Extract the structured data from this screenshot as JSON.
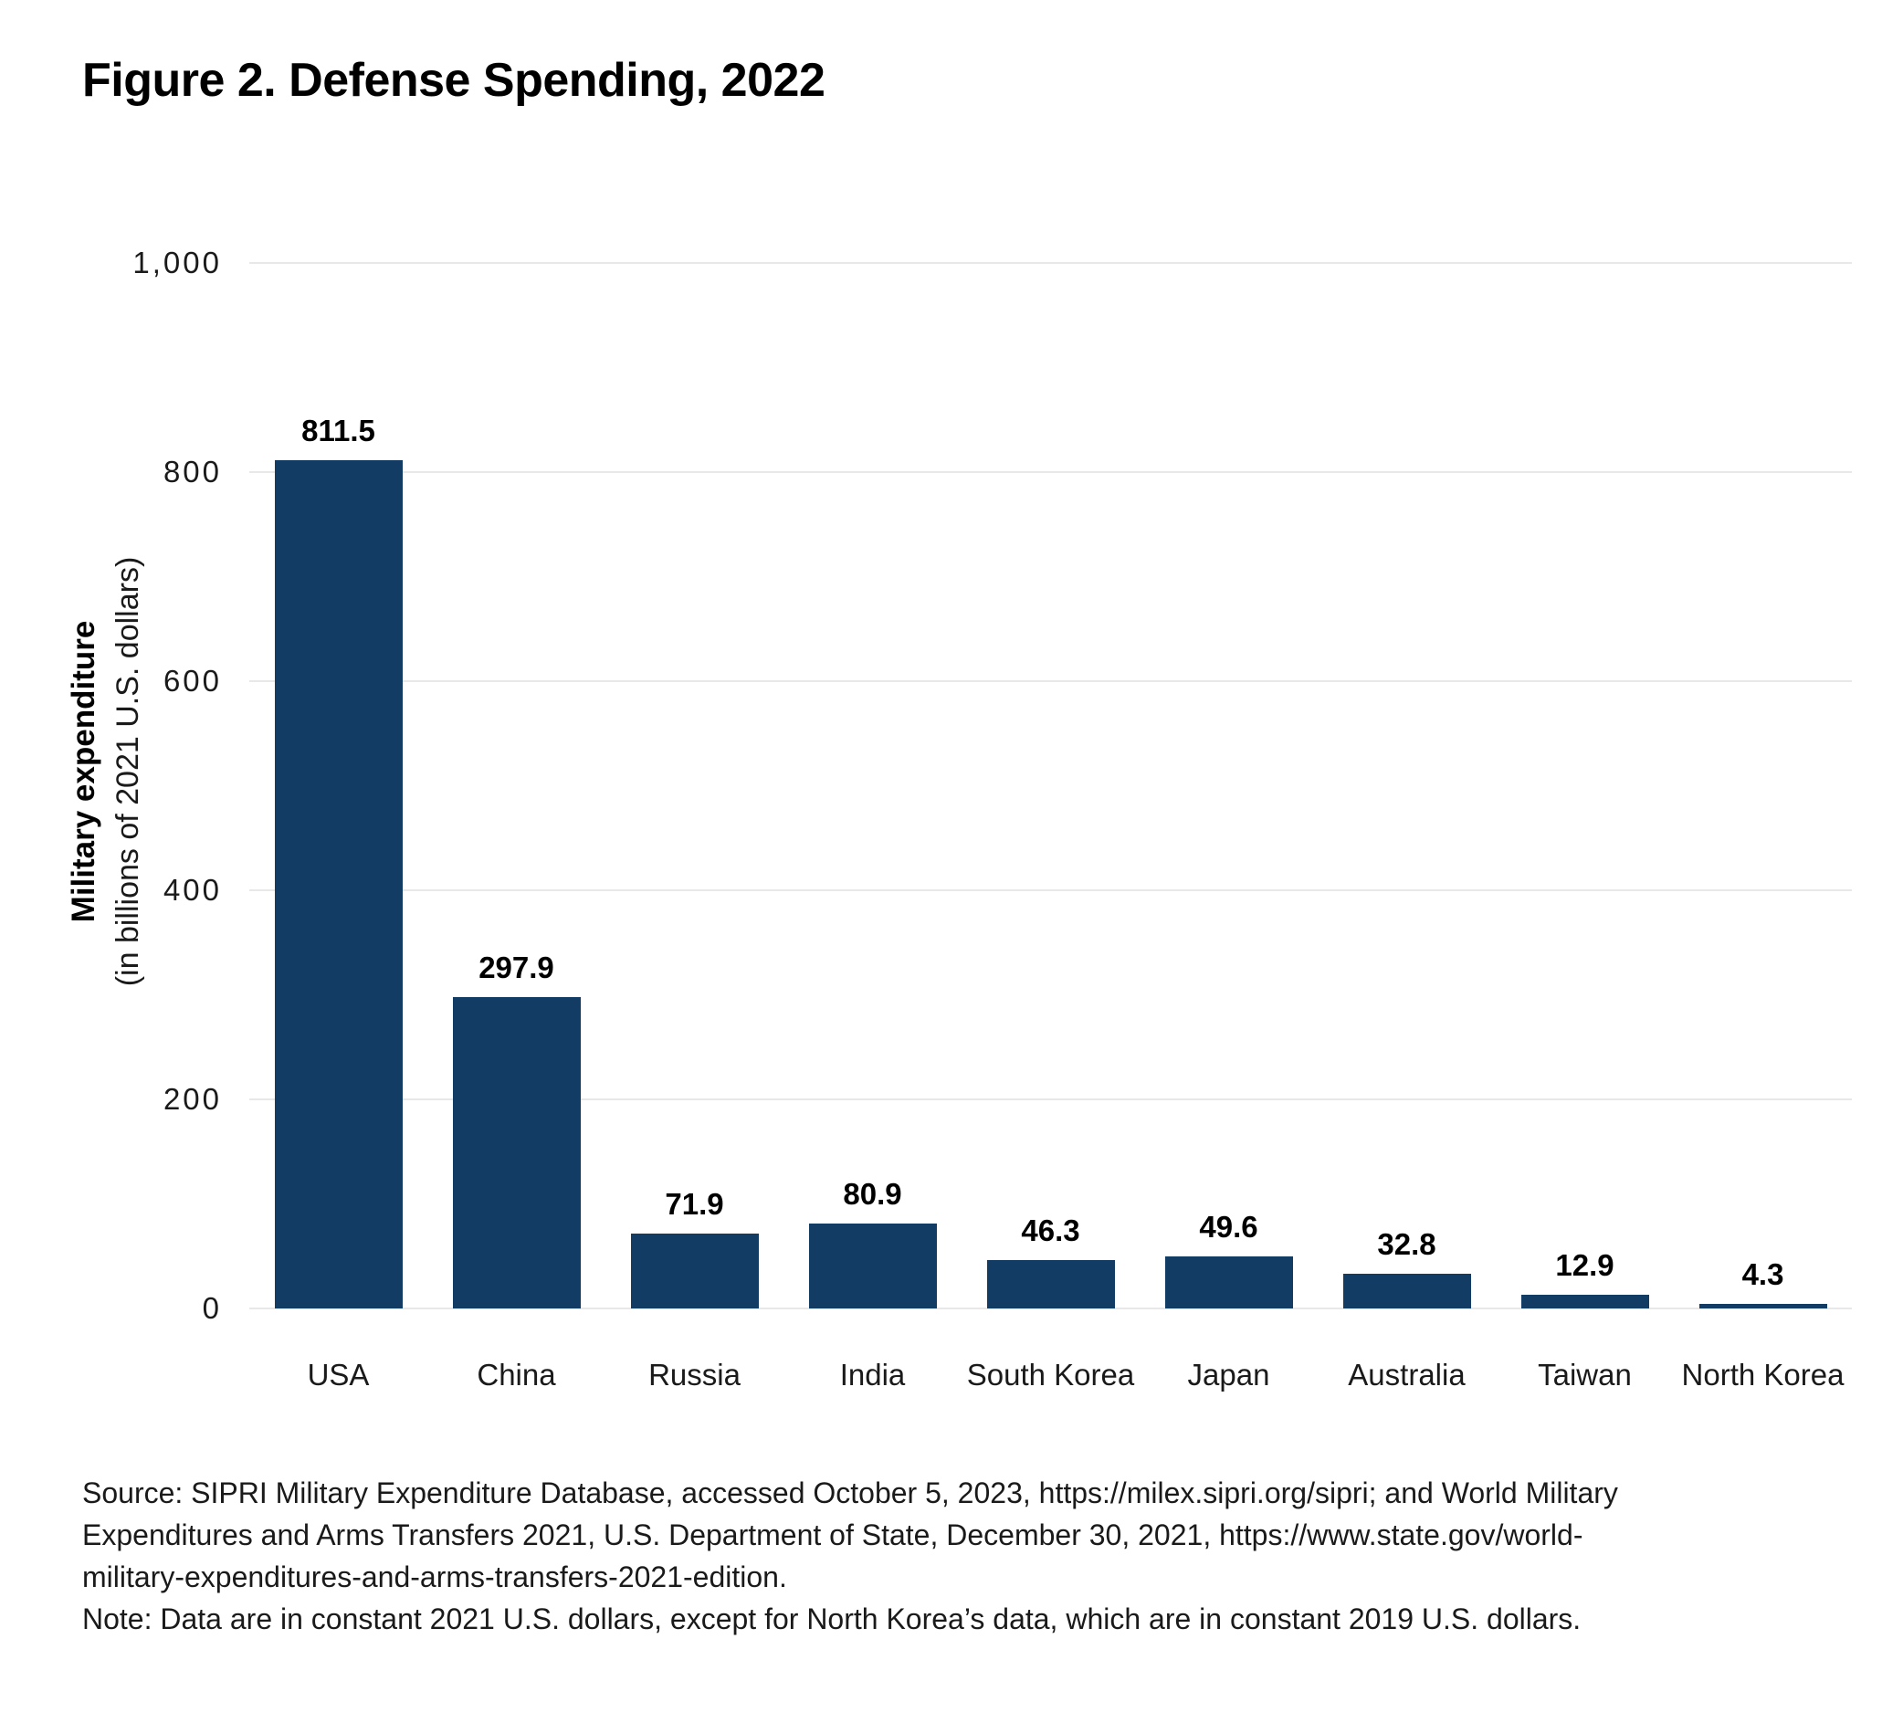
{
  "figure": {
    "title": "Figure 2. Defense Spending, 2022",
    "source": "Source: SIPRI Military Expenditure Database, accessed October 5, 2023, https://milex.sipri.org/sipri; and World Military Expenditures and Arms Transfers 2021, U.S. Department of State, December 30, 2021, https://www.state.gov/world-military-expenditures-and-arms-transfers-2021-edition.",
    "note": "Note: Data are in constant 2021 U.S. dollars, except for North Korea’s data, which are in constant 2019 U.S. dollars."
  },
  "chart_data": {
    "type": "bar",
    "title": "Figure 2. Defense Spending, 2022",
    "categories": [
      "USA",
      "China",
      "Russia",
      "India",
      "South Korea",
      "Japan",
      "Australia",
      "Taiwan",
      "North Korea"
    ],
    "values": [
      811.5,
      297.9,
      71.9,
      80.9,
      46.3,
      49.6,
      32.8,
      12.9,
      4.3
    ],
    "value_labels": [
      "811.5",
      "297.9",
      "71.9",
      "80.9",
      "46.3",
      "49.6",
      "32.8",
      "12.9",
      "4.3"
    ],
    "ylabel": "Military expenditure",
    "ylabel_sub": "(in billions of 2021 U.S. dollars)",
    "xlabel": "",
    "ylim": [
      0,
      1000
    ],
    "yticks": [
      0,
      200,
      400,
      600,
      800,
      1000
    ],
    "ytick_labels": [
      "0",
      "200",
      "400",
      "600",
      "800",
      "1,000"
    ],
    "grid": true,
    "legend": false,
    "bar_color": "#123C63",
    "gridline_color": "#E8E8E8",
    "value_label_color": "#000000",
    "text_color": "#1a1a1a"
  }
}
